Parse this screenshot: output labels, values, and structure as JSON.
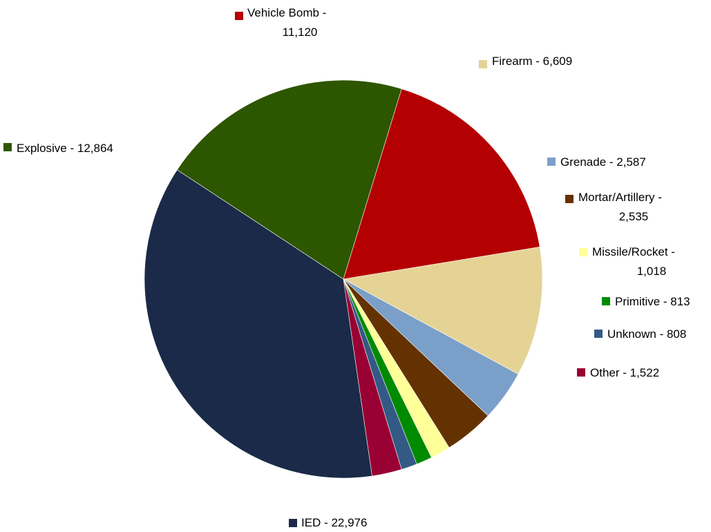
{
  "chart_data": {
    "type": "pie",
    "title": "",
    "start_angle_deg": 287,
    "direction": "clockwise",
    "slices": [
      {
        "label_lines": [
          "Vehicle Bomb -",
          "11,120"
        ],
        "category": "Vehicle Bomb",
        "value": 11120,
        "color": "#b40000"
      },
      {
        "label_lines": [
          "Firearm - 6,609"
        ],
        "category": "Firearm",
        "value": 6609,
        "color": "#e5d396"
      },
      {
        "label_lines": [
          "Grenade - 2,587"
        ],
        "category": "Grenade",
        "value": 2587,
        "color": "#7aa0c9"
      },
      {
        "label_lines": [
          "Mortar/Artillery -",
          "2,535"
        ],
        "category": "Mortar/Artillery",
        "value": 2535,
        "color": "#643200"
      },
      {
        "label_lines": [
          "Missile/Rocket -",
          "1,018"
        ],
        "category": "Missile/Rocket",
        "value": 1018,
        "color": "#ffff99"
      },
      {
        "label_lines": [
          "Primitive - 813"
        ],
        "category": "Primitive",
        "value": 813,
        "color": "#008a00"
      },
      {
        "label_lines": [
          "Unknown - 808"
        ],
        "category": "Unknown",
        "value": 808,
        "color": "#335a85"
      },
      {
        "label_lines": [
          "Other - 1,522"
        ],
        "category": "Other",
        "value": 1522,
        "color": "#990033"
      },
      {
        "label_lines": [
          "IED - 22,976"
        ],
        "category": "IED",
        "value": 22976,
        "color": "#1b2a48"
      },
      {
        "label_lines": [
          "Explosive - 12,864"
        ],
        "category": "Explosive",
        "value": 12864,
        "color": "#2d5600"
      }
    ],
    "legend": "labels-outside"
  }
}
